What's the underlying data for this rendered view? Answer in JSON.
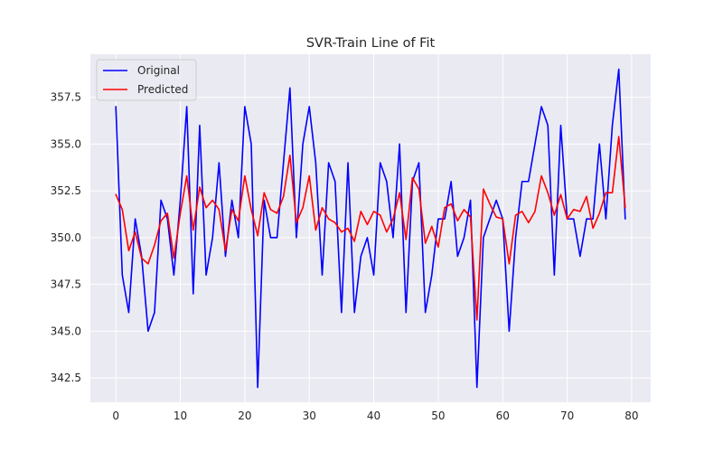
{
  "chart_data": {
    "type": "line",
    "title": "SVR-Train Line of Fit",
    "xlabel": "",
    "ylabel": "",
    "xlim": [
      -3.95,
      82.95
    ],
    "ylim": [
      341.2,
      359.8
    ],
    "xticks": [
      0,
      10,
      20,
      30,
      40,
      50,
      60,
      70,
      80
    ],
    "yticks": [
      342.5,
      345.0,
      347.5,
      350.0,
      352.5,
      355.0,
      357.5
    ],
    "ytick_labels": [
      "342.5",
      "345.0",
      "347.5",
      "350.0",
      "352.5",
      "355.0",
      "357.5"
    ],
    "grid": true,
    "legend_position": "top-left",
    "x": [
      0,
      1,
      2,
      3,
      4,
      5,
      6,
      7,
      8,
      9,
      10,
      11,
      12,
      13,
      14,
      15,
      16,
      17,
      18,
      19,
      20,
      21,
      22,
      23,
      24,
      25,
      26,
      27,
      28,
      29,
      30,
      31,
      32,
      33,
      34,
      35,
      36,
      37,
      38,
      39,
      40,
      41,
      42,
      43,
      44,
      45,
      46,
      47,
      48,
      49,
      50,
      51,
      52,
      53,
      54,
      55,
      56,
      57,
      58,
      59,
      60,
      61,
      62,
      63,
      64,
      65,
      66,
      67,
      68,
      69,
      70,
      71,
      72,
      73,
      74,
      75,
      76,
      77,
      78,
      79
    ],
    "series": [
      {
        "name": "Original",
        "color": "#0000ff",
        "values": [
          357,
          348,
          346,
          351,
          349,
          345,
          346,
          352,
          351,
          348,
          352,
          357,
          347,
          356,
          348,
          350,
          354,
          349,
          352,
          350,
          357,
          355,
          342,
          352,
          350,
          350,
          354,
          358,
          350,
          355,
          357,
          354,
          348,
          354,
          353,
          346,
          354,
          346,
          349,
          350,
          348,
          354,
          353,
          350,
          355,
          346,
          353,
          354,
          346,
          348,
          351,
          351,
          353,
          349,
          350,
          352,
          342,
          350,
          351,
          352,
          351,
          345,
          350,
          353,
          353,
          355,
          357,
          356,
          348,
          356,
          351,
          351,
          349,
          351,
          351,
          355,
          351,
          356,
          359,
          351
        ]
      },
      {
        "name": "Predicted",
        "color": "#ff0000",
        "values": [
          352.3,
          351.5,
          349.3,
          350.3,
          348.9,
          348.6,
          349.6,
          350.9,
          351.3,
          348.9,
          351.3,
          353.3,
          350.4,
          352.7,
          351.6,
          352.0,
          351.5,
          349.3,
          351.5,
          350.9,
          353.3,
          351.5,
          350.1,
          352.4,
          351.5,
          351.3,
          352.2,
          354.4,
          350.8,
          351.6,
          353.3,
          350.4,
          351.6,
          351.0,
          350.8,
          350.3,
          350.5,
          349.8,
          351.4,
          350.7,
          351.4,
          351.2,
          350.3,
          351.0,
          352.4,
          349.9,
          353.2,
          352.6,
          349.7,
          350.6,
          349.5,
          351.6,
          351.8,
          350.9,
          351.5,
          351.1,
          345.6,
          352.6,
          351.8,
          351.1,
          351.0,
          348.6,
          351.2,
          351.4,
          350.8,
          351.4,
          353.3,
          352.4,
          351.2,
          352.3,
          351.0,
          351.5,
          351.4,
          352.2,
          350.5,
          351.3,
          352.4,
          352.4,
          355.4,
          351.6
        ]
      }
    ]
  }
}
